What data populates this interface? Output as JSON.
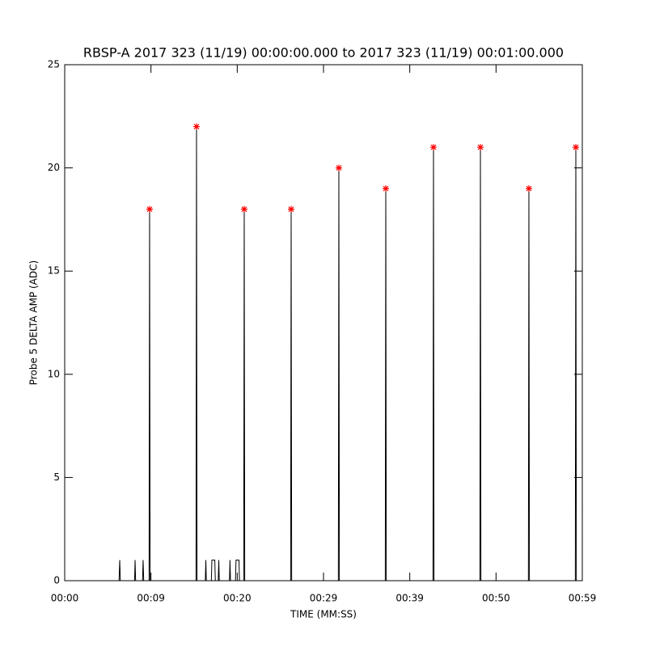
{
  "chart_data": {
    "type": "line",
    "title": "RBSP-A 2017 323 (11/19) 00:00:00.000 to 2017 323 (11/19) 00:01:00.000",
    "x_label": "TIME (MM:SS)",
    "y_label": "Probe 5 DELTA AMP (ADC)",
    "xlim": [
      0,
      60
    ],
    "ylim": [
      0,
      25
    ],
    "xticks": [
      {
        "value": 0,
        "label": "00:00"
      },
      {
        "value": 10,
        "label": "00:09"
      },
      {
        "value": 20,
        "label": "00:20"
      },
      {
        "value": 30,
        "label": "00:29"
      },
      {
        "value": 40,
        "label": "00:39"
      },
      {
        "value": 50,
        "label": "00:50"
      },
      {
        "value": 60,
        "label": "00:59"
      }
    ],
    "yticks": [
      0,
      5,
      10,
      15,
      20,
      25
    ],
    "series": [
      {
        "color": "#000000",
        "marker": "none",
        "x": [
          0,
          6.3,
          6.38,
          6.45,
          8.1,
          8.16,
          8.22,
          9.02,
          9.09,
          9.16,
          9.78,
          9.84,
          9.9,
          15.22,
          15.28,
          15.34,
          16.3,
          16.36,
          16.42,
          17.0,
          17.06,
          17.4,
          17.46,
          17.8,
          17.86,
          17.92,
          19.1,
          19.16,
          19.22,
          19.8,
          19.86,
          20.2,
          20.26,
          20.75,
          20.81,
          20.87,
          26.19,
          26.25,
          26.31,
          31.72,
          31.78,
          31.84,
          37.16,
          37.22,
          37.28,
          42.69,
          42.75,
          42.81,
          48.13,
          48.19,
          48.25,
          53.75,
          53.81,
          53.87,
          59.19,
          59.25,
          59.31,
          60
        ],
        "values": [
          0,
          0,
          1,
          0,
          0,
          1,
          0,
          0,
          1,
          0,
          0,
          18,
          0,
          0,
          22,
          0,
          0,
          1,
          0,
          0,
          1,
          1,
          0,
          0,
          1,
          0,
          0,
          1,
          0,
          0,
          1,
          1,
          0,
          0,
          18,
          0,
          0,
          18,
          0,
          0,
          20,
          0,
          0,
          19,
          0,
          0,
          21,
          0,
          0,
          21,
          0,
          0,
          19,
          0,
          0,
          21,
          0,
          0
        ]
      },
      {
        "color": "#ff0000",
        "marker": "asterisk",
        "x": [
          9.84,
          15.28,
          20.81,
          26.25,
          31.78,
          37.22,
          42.75,
          48.19,
          53.81,
          59.25
        ],
        "values": [
          18,
          22,
          18,
          18,
          20,
          19,
          21,
          21,
          19,
          21
        ]
      }
    ]
  }
}
